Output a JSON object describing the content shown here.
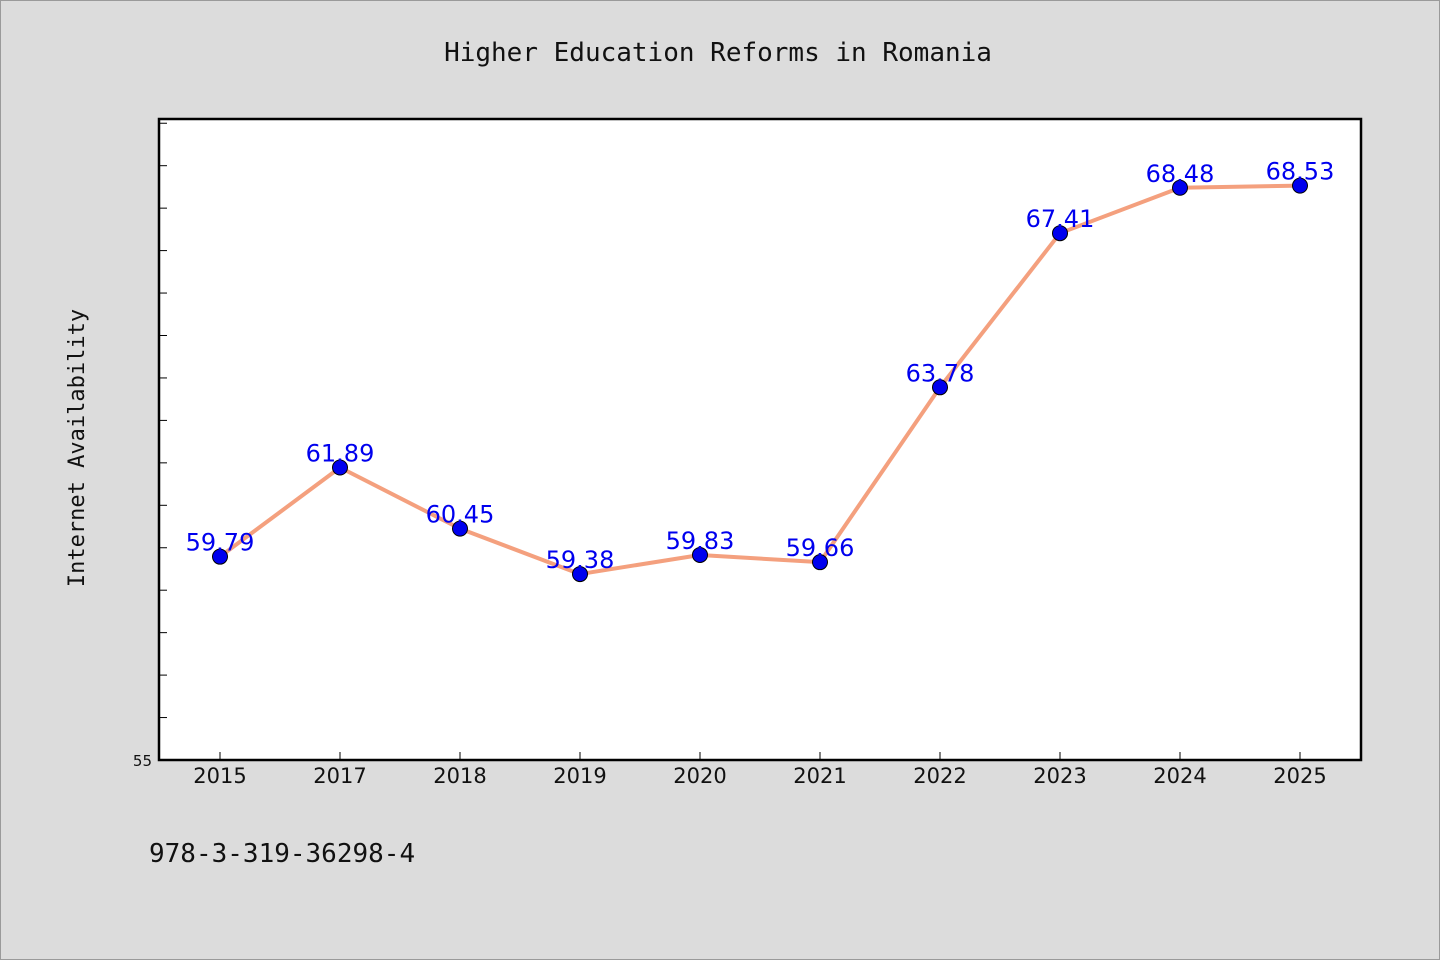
{
  "chart_data": {
    "type": "line",
    "title": "Higher Education Reforms in Romania",
    "xlabel": "",
    "ylabel": "Internet Availability",
    "categories": [
      "2015",
      "2017",
      "2018",
      "2019",
      "2020",
      "2021",
      "2022",
      "2023",
      "2024",
      "2025"
    ],
    "series": [
      {
        "values": [
          59.79,
          61.89,
          60.45,
          59.38,
          59.83,
          59.66,
          63.78,
          67.41,
          68.48,
          68.53
        ]
      }
    ],
    "data_labels": [
      "59.79",
      "61.89",
      "60.45",
      "59.38",
      "59.83",
      "59.66",
      "63.78",
      "67.41",
      "68.48",
      "68.53"
    ],
    "ylim": [
      55,
      70.1
    ],
    "y_tick_label": "55",
    "y_minor_tick_step": 1,
    "grid": false,
    "colors": {
      "line": "#f4a07e",
      "marker": "#0000ee",
      "label": "#0000ee",
      "plot_bg": "#ffffff",
      "figure_bg": "#dcdcdc"
    }
  },
  "footer": {
    "isbn": "978-3-319-36298-4"
  }
}
